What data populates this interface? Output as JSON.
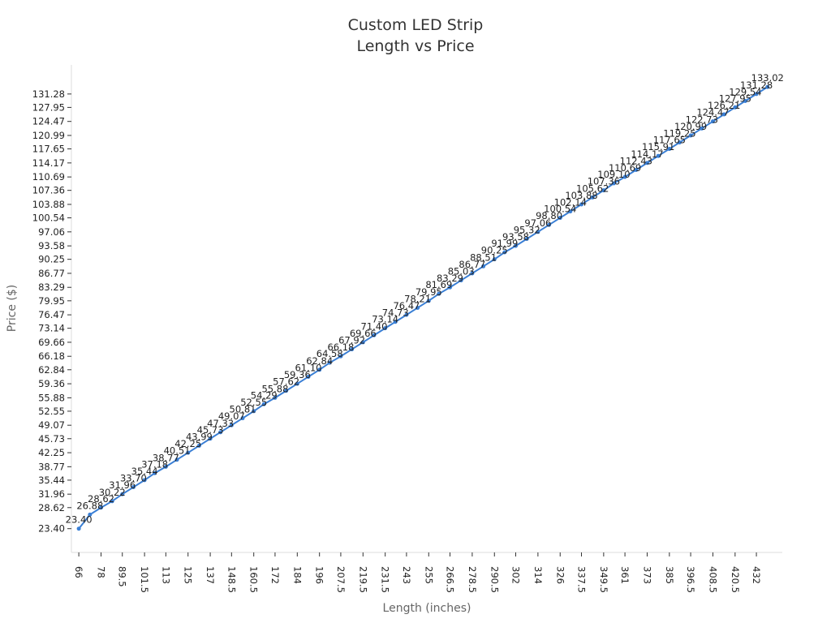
{
  "chart_data": {
    "type": "line",
    "title_line1": "Custom LED Strip",
    "title_line2": "Length vs Price",
    "xlabel": "Length (inches)",
    "ylabel": "Price ($)",
    "x_ticks": [
      "66",
      "78",
      "89.5",
      "101.5",
      "113",
      "125",
      "137",
      "148.5",
      "160.5",
      "172",
      "184",
      "196",
      "207.5",
      "219.5",
      "231.5",
      "243",
      "255",
      "266.5",
      "278.5",
      "290.5",
      "302",
      "314",
      "326",
      "337.5",
      "349.5",
      "361",
      "373",
      "385",
      "396.5",
      "408.5",
      "420.5",
      "432"
    ],
    "y_ticks": [
      "23.40",
      "28.62",
      "31.96",
      "35.44",
      "38.77",
      "42.25",
      "45.73",
      "49.07",
      "52.55",
      "55.88",
      "59.36",
      "62.84",
      "66.18",
      "69.66",
      "73.14",
      "76.47",
      "79.95",
      "83.29",
      "86.77",
      "90.25",
      "93.58",
      "97.06",
      "100.54",
      "103.88",
      "107.36",
      "110.69",
      "114.17",
      "117.65",
      "120.99",
      "124.47",
      "127.95",
      "131.28"
    ],
    "series": [
      {
        "color": "#3a7fd5",
        "x": [
          66,
          72,
          78,
          84,
          89.5,
          95.5,
          101.5,
          107,
          113,
          119,
          125,
          131,
          137,
          142.5,
          148.5,
          154.5,
          160.5,
          166,
          172,
          178,
          184,
          190,
          196,
          201.5,
          207.5,
          213.5,
          219.5,
          225.5,
          231.5,
          237,
          243,
          249,
          255,
          260.5,
          266.5,
          272.5,
          278.5,
          284.5,
          290.5,
          296,
          302,
          308,
          314,
          320,
          326,
          331.5,
          337.5,
          343.5,
          349.5,
          355,
          361,
          367,
          373,
          379,
          385,
          390.5,
          396.5,
          402.5,
          408.5,
          414.5,
          420.5,
          426,
          432,
          438
        ],
        "values": [
          23.4,
          26.88,
          28.62,
          30.22,
          31.96,
          33.7,
          35.44,
          37.18,
          38.77,
          40.51,
          42.25,
          43.99,
          45.73,
          47.33,
          49.07,
          50.81,
          52.55,
          54.29,
          55.88,
          57.62,
          59.36,
          61.1,
          62.84,
          64.58,
          66.18,
          67.92,
          69.66,
          71.4,
          73.14,
          74.73,
          76.47,
          78.21,
          79.95,
          81.69,
          83.29,
          85.03,
          86.77,
          88.51,
          90.25,
          91.99,
          93.58,
          95.32,
          97.06,
          98.8,
          100.54,
          102.14,
          103.88,
          105.62,
          107.36,
          109.1,
          110.69,
          112.43,
          114.17,
          115.91,
          117.65,
          119.25,
          120.99,
          122.73,
          124.47,
          126.21,
          127.95,
          129.54,
          131.28,
          133.02
        ]
      }
    ],
    "xlim": [
      62,
      446
    ],
    "ylim": [
      17.5,
      138.5
    ],
    "grid": false,
    "legend": "none"
  }
}
